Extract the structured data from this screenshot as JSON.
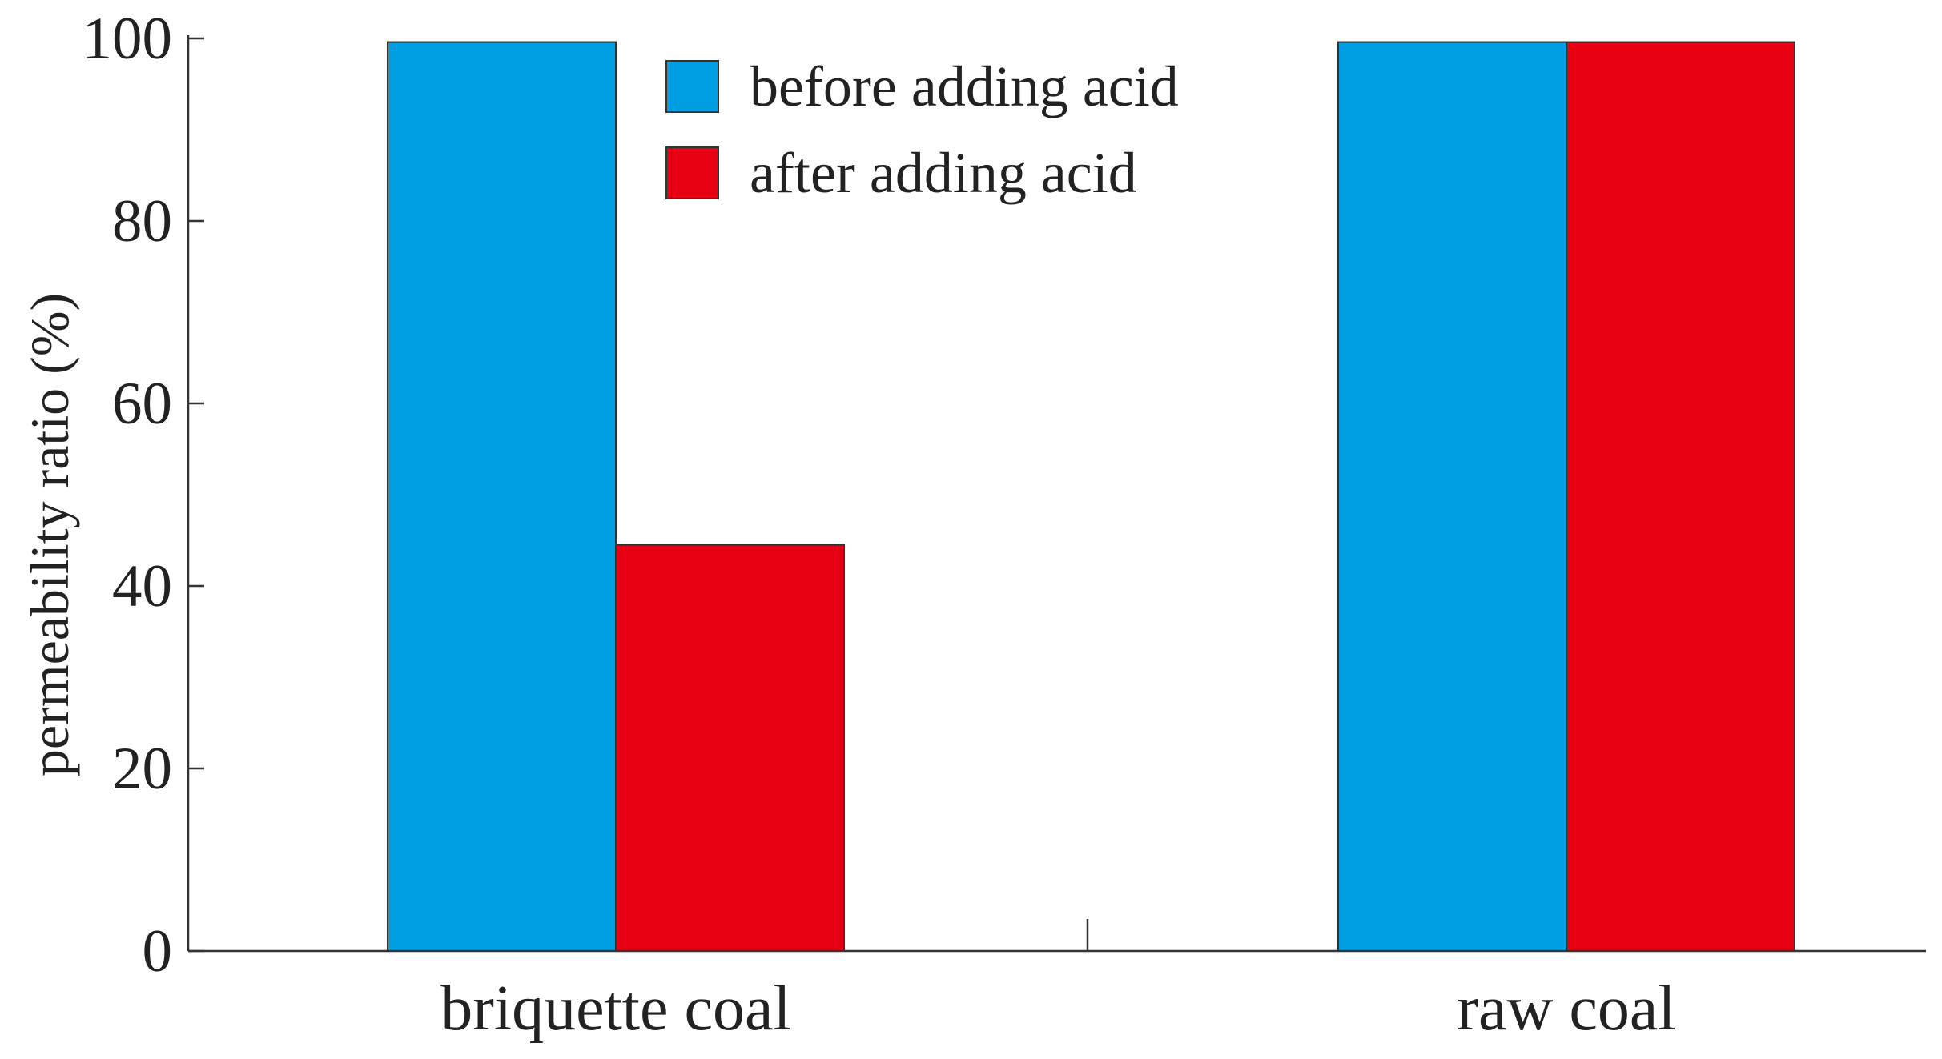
{
  "chart_data": {
    "type": "bar",
    "y_label": "permeability ratio (%)",
    "categories": [
      "briquette coal",
      "raw coal"
    ],
    "series": [
      {
        "name": "before adding acid",
        "color": "#009fe3",
        "values": [
          99.6,
          99.6
        ]
      },
      {
        "name": "after adding acid",
        "color": "#e60012",
        "values": [
          44.5,
          99.6
        ]
      }
    ],
    "ylim": [
      0,
      100
    ],
    "yticks": [
      0,
      20,
      40,
      60,
      80,
      100
    ]
  }
}
